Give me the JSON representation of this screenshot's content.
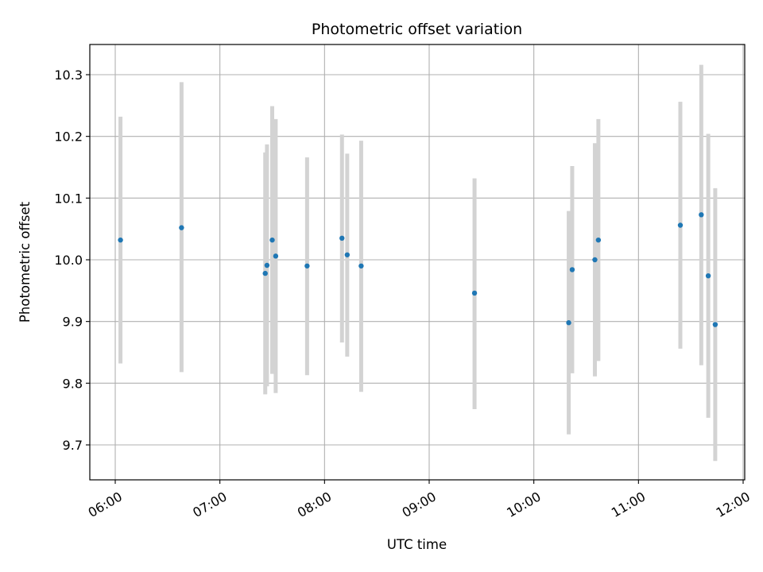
{
  "chart_data": {
    "type": "scatter",
    "title": "Photometric offset variation",
    "xlabel": "UTC time",
    "ylabel": "Photometric offset",
    "xlim": [
      "05:45",
      "12:00"
    ],
    "ylim": [
      9.64,
      10.35
    ],
    "x_ticks": [
      "06:00",
      "07:00",
      "08:00",
      "09:00",
      "10:00",
      "11:00",
      "12:00"
    ],
    "y_ticks": [
      9.7,
      9.8,
      9.9,
      10.0,
      10.1,
      10.2,
      10.3
    ],
    "y_tick_labels": [
      "9.7",
      "9.8",
      "9.9",
      "10.0",
      "10.1",
      "10.2",
      "10.3"
    ],
    "grid": true,
    "colors": {
      "points": "#1f77b4",
      "error_bars": "#d3d3d3",
      "grid": "#b0b0b0"
    },
    "points": [
      {
        "time": "06:03",
        "value": 10.032,
        "low": 9.832,
        "high": 10.232
      },
      {
        "time": "06:38",
        "value": 10.052,
        "low": 9.818,
        "high": 10.288
      },
      {
        "time": "07:26",
        "value": 9.978,
        "low": 9.782,
        "high": 10.174
      },
      {
        "time": "07:27",
        "value": 9.991,
        "low": 9.795,
        "high": 10.187
      },
      {
        "time": "07:30",
        "value": 10.032,
        "low": 9.815,
        "high": 10.249
      },
      {
        "time": "07:32",
        "value": 10.006,
        "low": 9.784,
        "high": 10.228
      },
      {
        "time": "07:50",
        "value": 9.99,
        "low": 9.813,
        "high": 10.166
      },
      {
        "time": "08:10",
        "value": 10.035,
        "low": 9.866,
        "high": 10.203
      },
      {
        "time": "08:13",
        "value": 10.008,
        "low": 9.843,
        "high": 10.172
      },
      {
        "time": "08:21",
        "value": 9.99,
        "low": 9.786,
        "high": 10.193
      },
      {
        "time": "09:26",
        "value": 9.946,
        "low": 9.758,
        "high": 10.132
      },
      {
        "time": "10:20",
        "value": 9.898,
        "low": 9.717,
        "high": 10.079
      },
      {
        "time": "10:22",
        "value": 9.984,
        "low": 9.816,
        "high": 10.152
      },
      {
        "time": "10:35",
        "value": 10.0,
        "low": 9.811,
        "high": 10.189
      },
      {
        "time": "10:37",
        "value": 10.032,
        "low": 9.836,
        "high": 10.228
      },
      {
        "time": "11:24",
        "value": 10.056,
        "low": 9.856,
        "high": 10.256
      },
      {
        "time": "11:36",
        "value": 10.073,
        "low": 9.829,
        "high": 10.316
      },
      {
        "time": "11:40",
        "value": 9.974,
        "low": 9.744,
        "high": 10.204
      },
      {
        "time": "11:44",
        "value": 9.895,
        "low": 9.674,
        "high": 10.116
      }
    ]
  }
}
